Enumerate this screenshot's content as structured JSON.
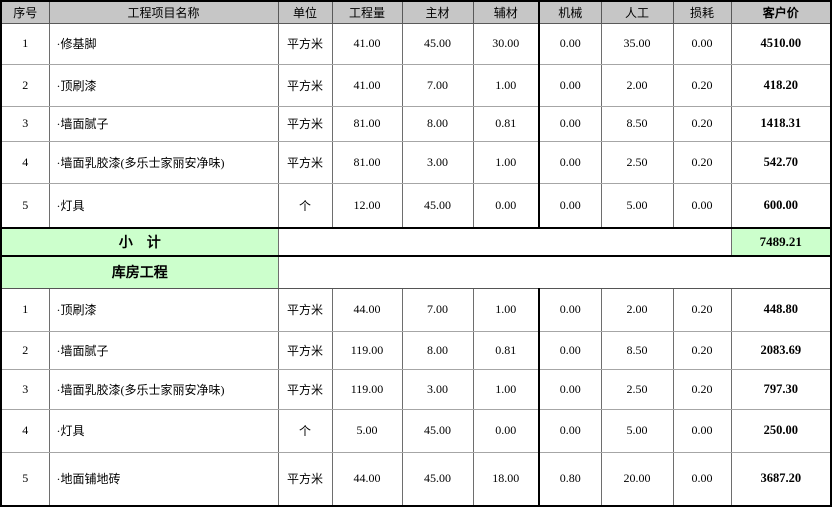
{
  "table": {
    "colors": {
      "header_bg": "#c6c6c6",
      "highlight_bg": "#ccffcc",
      "grid_outer": "#000000"
    },
    "columns": [
      {
        "key": "index",
        "label": "序号"
      },
      {
        "key": "item-name",
        "label": "工程项目名称"
      },
      {
        "key": "unit",
        "label": "单位"
      },
      {
        "key": "quantity",
        "label": "工程量"
      },
      {
        "key": "main-material",
        "label": "主材"
      },
      {
        "key": "aux-material",
        "label": "辅材"
      },
      {
        "key": "machinery",
        "label": "机械"
      },
      {
        "key": "labor",
        "label": "人工"
      },
      {
        "key": "loss",
        "label": "损耗"
      },
      {
        "key": "customer-price",
        "label": "客户价"
      }
    ],
    "section1": {
      "rows": [
        [
          "1",
          "·修基脚",
          "平方米",
          "41.00",
          "45.00",
          "30.00",
          "0.00",
          "35.00",
          "0.00",
          "4510.00"
        ],
        [
          "2",
          "·顶刷漆",
          "平方米",
          "41.00",
          "7.00",
          "1.00",
          "0.00",
          "2.00",
          "0.20",
          "418.20"
        ],
        [
          "3",
          "·墙面腻子",
          "平方米",
          "81.00",
          "8.00",
          "0.81",
          "0.00",
          "8.50",
          "0.20",
          "1418.31"
        ],
        [
          "4",
          "·墙面乳胶漆(多乐士家丽安净味)",
          "平方米",
          "81.00",
          "3.00",
          "1.00",
          "0.00",
          "2.50",
          "0.20",
          "542.70"
        ],
        [
          "5",
          "·灯具",
          "个",
          "12.00",
          "45.00",
          "0.00",
          "0.00",
          "5.00",
          "0.00",
          "600.00"
        ]
      ],
      "subtotal_label": "小　计",
      "subtotal_value": "7489.21"
    },
    "section2": {
      "title": "库房工程",
      "rows": [
        [
          "1",
          "·顶刷漆",
          "平方米",
          "44.00",
          "7.00",
          "1.00",
          "0.00",
          "2.00",
          "0.20",
          "448.80"
        ],
        [
          "2",
          "·墙面腻子",
          "平方米",
          "119.00",
          "8.00",
          "0.81",
          "0.00",
          "8.50",
          "0.20",
          "2083.69"
        ],
        [
          "3",
          "·墙面乳胶漆(多乐士家丽安净味)",
          "平方米",
          "119.00",
          "3.00",
          "1.00",
          "0.00",
          "2.50",
          "0.20",
          "797.30"
        ],
        [
          "4",
          "·灯具",
          "个",
          "5.00",
          "45.00",
          "0.00",
          "0.00",
          "5.00",
          "0.00",
          "250.00"
        ],
        [
          "5",
          "·地面铺地砖",
          "平方米",
          "44.00",
          "45.00",
          "18.00",
          "0.80",
          "20.00",
          "0.00",
          "3687.20"
        ]
      ]
    }
  }
}
